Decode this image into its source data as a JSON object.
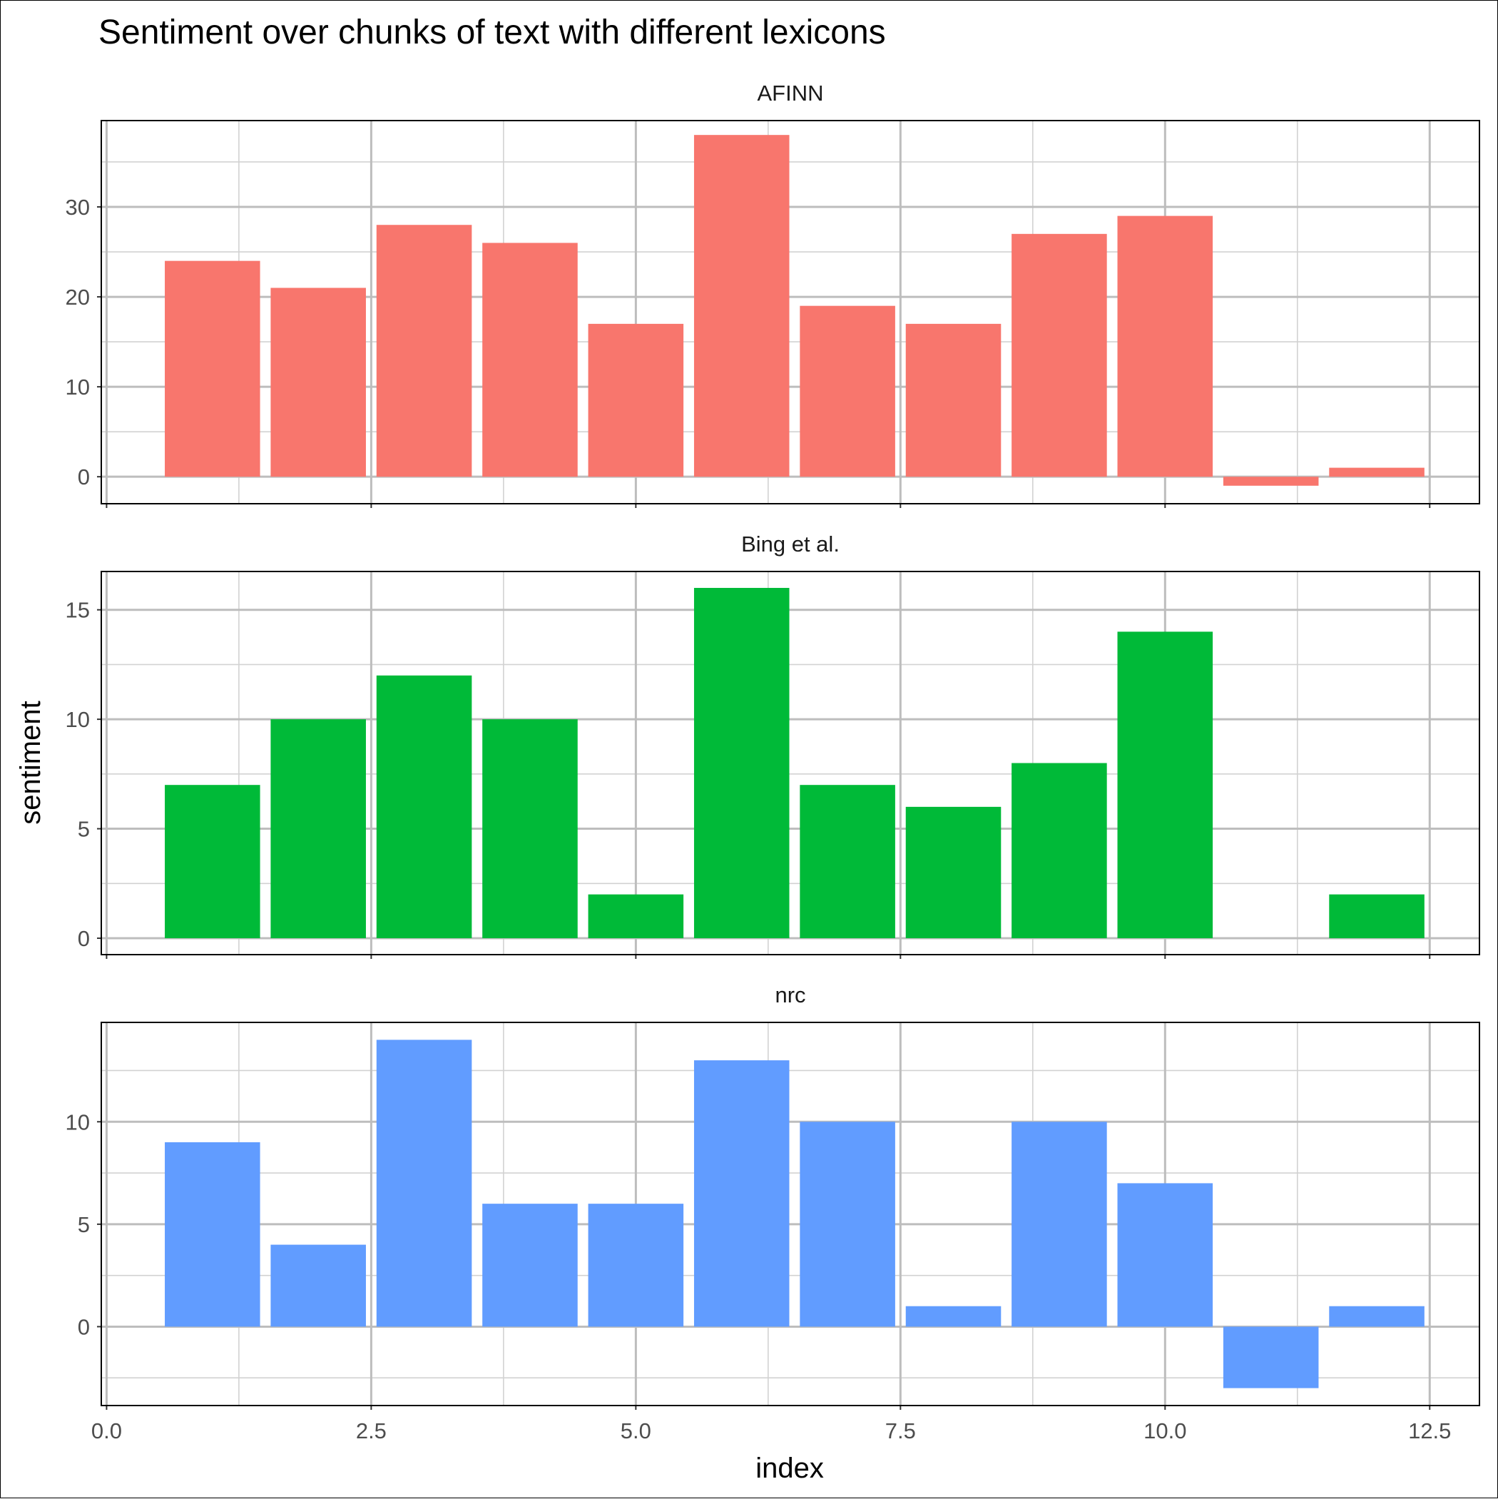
{
  "chart_data": {
    "type": "bar",
    "title": "Sentiment over chunks of text with different lexicons",
    "xlabel": "index",
    "ylabel": "sentiment",
    "grid": true,
    "legend": "none",
    "facet_layout": "vertical",
    "xlim": [
      0,
      12.5
    ],
    "x_ticks": [
      "0.0",
      "2.5",
      "5.0",
      "7.5",
      "10.0",
      "12.5"
    ],
    "x": [
      1,
      2,
      3,
      4,
      5,
      6,
      7,
      8,
      9,
      10,
      11,
      12
    ],
    "panels": [
      {
        "name": "AFINN",
        "color": "#F8766D",
        "values": [
          24,
          21,
          28,
          26,
          17,
          38,
          19,
          17,
          27,
          29,
          -1,
          1
        ],
        "ylim": [
          -3,
          39.6
        ],
        "y_ticks": [
          0,
          10,
          20,
          30
        ]
      },
      {
        "name": "Bing et al.",
        "color": "#00BA38",
        "values": [
          7,
          10,
          12,
          10,
          2,
          16,
          7,
          6,
          8,
          14,
          0,
          2
        ],
        "ylim": [
          -0.75,
          16.75
        ],
        "y_ticks": [
          0,
          5,
          10,
          15
        ]
      },
      {
        "name": "nrc",
        "color": "#619CFF",
        "values": [
          9,
          4,
          14,
          6,
          6,
          13,
          10,
          1,
          10,
          7,
          -3,
          1
        ],
        "ylim": [
          -3.85,
          14.85
        ],
        "y_ticks": [
          0,
          5,
          10
        ]
      }
    ]
  }
}
